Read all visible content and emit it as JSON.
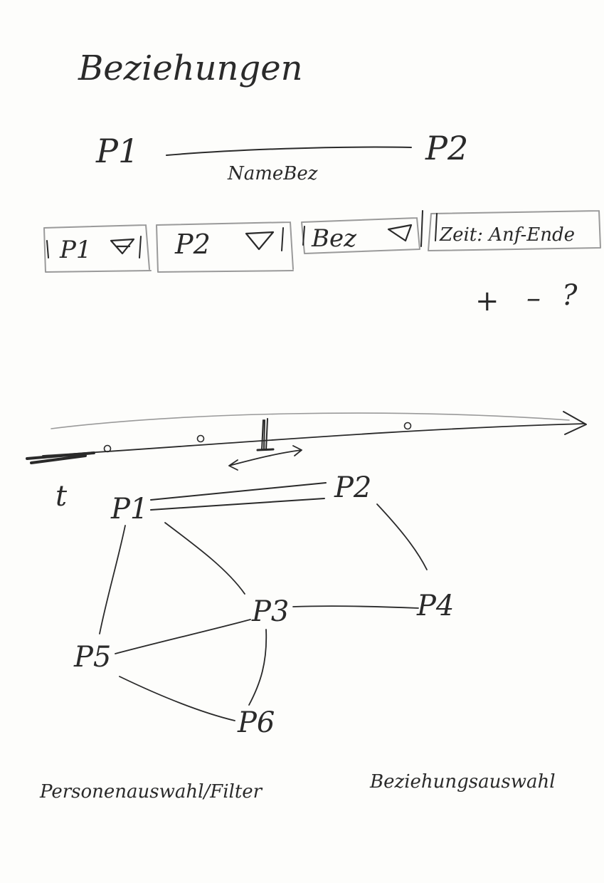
{
  "title": "Beziehungen",
  "relation_sketch": {
    "left": "P1",
    "right": "P2",
    "label": "NameBez"
  },
  "field_row": {
    "fields": [
      {
        "label": "P1",
        "has_dropdown": true
      },
      {
        "label": "P2",
        "has_dropdown": true
      },
      {
        "label": "Bez",
        "has_dropdown": true
      },
      {
        "label": "Zeit: Anf-Ende",
        "has_dropdown": false
      }
    ]
  },
  "actions": {
    "add": "+",
    "remove": "–",
    "help": "?"
  },
  "timeline": {
    "axis_label": "t"
  },
  "graph": {
    "nodes": [
      {
        "id": "P1",
        "label": "P1"
      },
      {
        "id": "P2",
        "label": "P2"
      },
      {
        "id": "P3",
        "label": "P3"
      },
      {
        "id": "P4",
        "label": "P4"
      },
      {
        "id": "P5",
        "label": "P5"
      },
      {
        "id": "P6",
        "label": "P6"
      }
    ],
    "edges": [
      {
        "from": "P1",
        "to": "P2",
        "style": "double"
      },
      {
        "from": "P1",
        "to": "P3",
        "style": "single"
      },
      {
        "from": "P1",
        "to": "P5",
        "style": "single"
      },
      {
        "from": "P2",
        "to": "P4",
        "style": "single"
      },
      {
        "from": "P3",
        "to": "P4",
        "style": "single"
      },
      {
        "from": "P3",
        "to": "P5",
        "style": "single"
      },
      {
        "from": "P3",
        "to": "P6",
        "style": "single"
      },
      {
        "from": "P5",
        "to": "P6",
        "style": "single"
      }
    ]
  },
  "footer": {
    "left_label": "Personenauswahl/Filter",
    "right_label": "Beziehungsauswahl"
  }
}
